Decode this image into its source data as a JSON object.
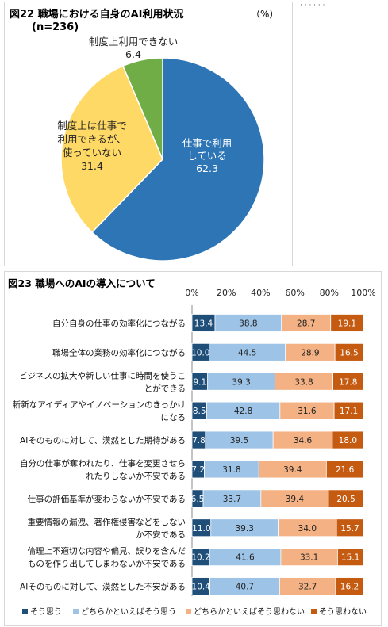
{
  "chart_data": [
    {
      "type": "pie",
      "title": "図22 職場における自身のAI利用状況",
      "subtitle": "(n=236)",
      "unit": "（%）",
      "slices": [
        {
          "label": "仕事で利用している",
          "label_lines": [
            "仕事で利用",
            "している"
          ],
          "value": 62.3,
          "value_text": "62.3",
          "color": "#2e75b6"
        },
        {
          "label": "制度上は仕事で利用できるが、使っていない",
          "label_lines": [
            "制度上は仕事で",
            "利用できるが、",
            "使っていない"
          ],
          "value": 31.4,
          "value_text": "31.4",
          "color": "#ffd966"
        },
        {
          "label": "制度上利用できない",
          "label_lines": [
            "制度上利用できない"
          ],
          "value": 6.4,
          "value_text": "6.4",
          "color": "#70ad47"
        }
      ]
    },
    {
      "type": "bar",
      "orientation": "horizontal",
      "stacked": true,
      "title": "図23 職場へのAIの導入について",
      "x_ticks": [
        "0%",
        "20%",
        "40%",
        "60%",
        "80%",
        "100%"
      ],
      "xlim": [
        0,
        100
      ],
      "grid": false,
      "legend_position": "bottom",
      "series": [
        {
          "name": "そう思う",
          "color": "#1f4e79"
        },
        {
          "name": "どちらかといえばそう思う",
          "color": "#9dc3e6"
        },
        {
          "name": "どちらかといえばそう思わない",
          "color": "#f4b183"
        },
        {
          "name": "そう思わない",
          "color": "#c55a11"
        }
      ],
      "categories": [
        {
          "lines": [
            "自分自身の仕事の効率化につながる"
          ],
          "values": [
            13.4,
            38.8,
            28.7,
            19.1
          ],
          "labels": [
            "13.4",
            "38.8",
            "28.7",
            "19.1"
          ]
        },
        {
          "lines": [
            "職場全体の業務の効率化につながる"
          ],
          "values": [
            10.0,
            44.5,
            28.9,
            16.5
          ],
          "labels": [
            "10.0",
            "44.5",
            "28.9",
            "16.5"
          ]
        },
        {
          "lines": [
            "ビジネスの拡大や新しい仕事に時間を使うこ",
            "とができる"
          ],
          "values": [
            9.1,
            39.3,
            33.8,
            17.8
          ],
          "labels": [
            "9.1",
            "39.3",
            "33.8",
            "17.8"
          ]
        },
        {
          "lines": [
            "斬新なアイディアやイノベーションのきっかけ",
            "になる"
          ],
          "values": [
            8.5,
            42.8,
            31.6,
            17.1
          ],
          "labels": [
            "8.5",
            "42.8",
            "31.6",
            "17.1"
          ]
        },
        {
          "lines": [
            "AIそのものに対して、漠然とした期待がある"
          ],
          "values": [
            7.8,
            39.5,
            34.6,
            18.0
          ],
          "labels": [
            "7.8",
            "39.5",
            "34.6",
            "18.0"
          ]
        },
        {
          "lines": [
            "自分の仕事が奪われたり、仕事を変更させら",
            "れたりしないか不安である"
          ],
          "values": [
            7.2,
            31.8,
            39.4,
            21.6
          ],
          "labels": [
            "7.2",
            "31.8",
            "39.4",
            "21.6"
          ]
        },
        {
          "lines": [
            "仕事の評価基準が変わらないか不安である"
          ],
          "values": [
            6.5,
            33.7,
            39.4,
            20.5
          ],
          "labels": [
            "6.5",
            "33.7",
            "39.4",
            "20.5"
          ]
        },
        {
          "lines": [
            "重要情報の漏洩、著作権侵害などをしない",
            "か不安である"
          ],
          "values": [
            11.0,
            39.3,
            34.0,
            15.7
          ],
          "labels": [
            "11.0",
            "39.3",
            "34.0",
            "15.7"
          ]
        },
        {
          "lines": [
            "倫理上不適切な内容や偏見、誤りを含んだ",
            "ものを作り出してしまわないか不安である"
          ],
          "values": [
            10.2,
            41.6,
            33.1,
            15.1
          ],
          "labels": [
            "10.2",
            "41.6",
            "33.1",
            "15.1"
          ]
        },
        {
          "lines": [
            "AIそのものに対して、漠然とした不安がある"
          ],
          "values": [
            10.4,
            40.7,
            32.7,
            16.2
          ],
          "labels": [
            "10.4",
            "40.7",
            "32.7",
            "16.2"
          ]
        }
      ]
    }
  ]
}
